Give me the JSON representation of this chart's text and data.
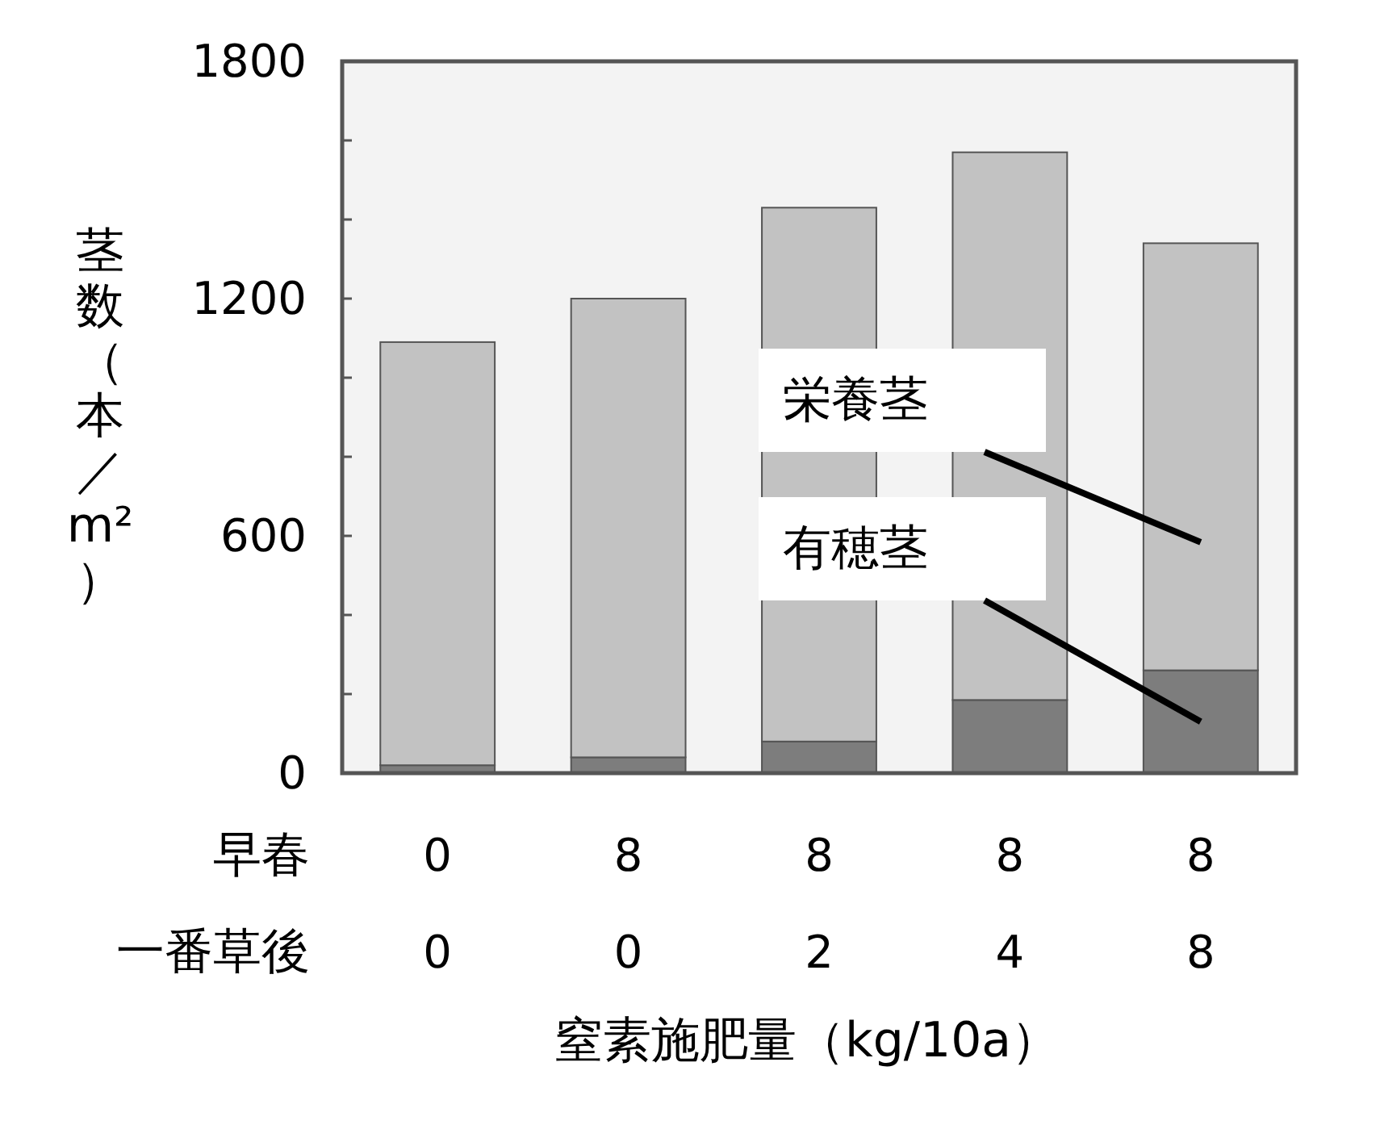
{
  "chart_data": {
    "type": "bar",
    "stacked": true,
    "xlabel": "窒素施肥量（kg/10a）",
    "ylabel": "茎数（本／m²）",
    "categories": [
      "0\n0",
      "8\n0",
      "8\n2",
      "8\n4",
      "8\n8"
    ],
    "series": [
      {
        "name": "有穂茎",
        "color": "#7d7d7d",
        "values": [
          20,
          40,
          80,
          185,
          260
        ]
      },
      {
        "name": "栄養茎",
        "color": "#c2c2c2",
        "values": [
          1070,
          1160,
          1350,
          1385,
          1080
        ]
      }
    ],
    "ylim": [
      0,
      1800
    ],
    "yticks": [
      0,
      {
        "value": 200,
        "label": null
      },
      {
        "value": 400,
        "label": null
      },
      600,
      {
        "value": 800,
        "label": null
      },
      {
        "value": 1000,
        "label": null
      },
      1200,
      {
        "value": 1400,
        "label": null
      },
      {
        "value": 1600,
        "label": null
      },
      1800
    ],
    "annotations": [
      "早春",
      "一番草後"
    ],
    "grid": false,
    "legend": false
  }
}
